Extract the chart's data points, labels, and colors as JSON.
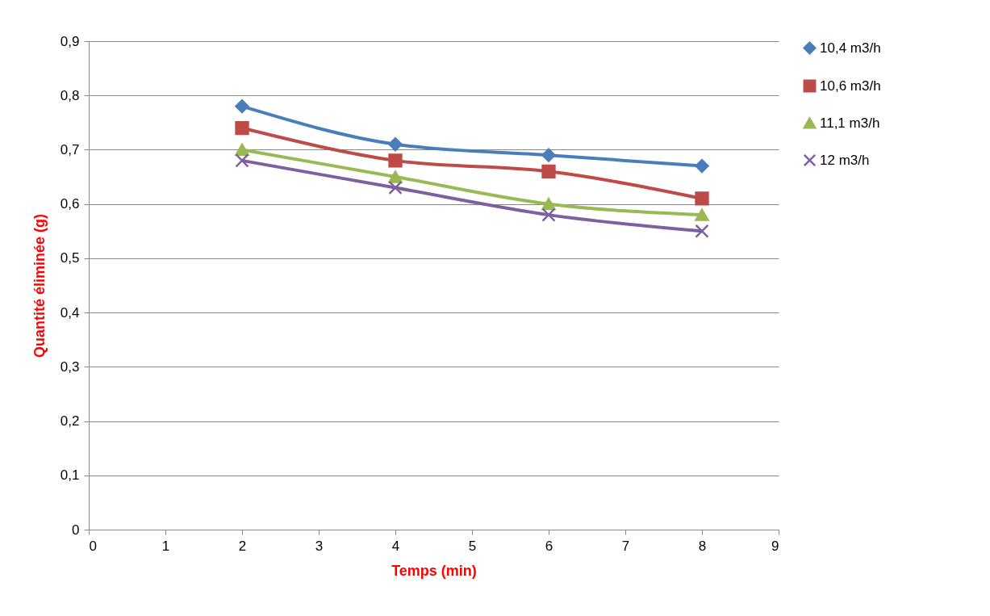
{
  "chart_data": {
    "type": "line",
    "xlabel": "Temps (min)",
    "ylabel": "Quantité éliminée (g)",
    "x": [
      2,
      4,
      6,
      8
    ],
    "series": [
      {
        "name": "10,4 m3/h",
        "color": "#4a7ebb",
        "marker": "diamond",
        "values": [
          0.78,
          0.71,
          0.69,
          0.67
        ]
      },
      {
        "name": "10,6 m3/h",
        "color": "#be4b48",
        "marker": "square",
        "values": [
          0.74,
          0.68,
          0.66,
          0.61
        ]
      },
      {
        "name": "11,1 m3/h",
        "color": "#98b954",
        "marker": "triangle",
        "values": [
          0.7,
          0.65,
          0.6,
          0.58
        ]
      },
      {
        "name": "12 m3/h",
        "color": "#7d60a0",
        "marker": "cross",
        "values": [
          0.68,
          0.63,
          0.58,
          0.55
        ]
      }
    ],
    "xlim": [
      0,
      9
    ],
    "xticks": [
      0,
      1,
      2,
      3,
      4,
      5,
      6,
      7,
      8,
      9
    ],
    "ylim": [
      0,
      0.9
    ],
    "yticks": [
      0,
      {
        "value": 0.1,
        "label": "0,1"
      },
      {
        "value": 0.2,
        "label": "0,2"
      },
      {
        "value": 0.3,
        "label": "0,3"
      },
      {
        "value": 0.4,
        "label": "0,4"
      },
      {
        "value": 0.5,
        "label": "0,5"
      },
      {
        "value": 0.6,
        "label": "0,6"
      },
      {
        "value": 0.7,
        "label": "0,7"
      },
      {
        "value": 0.8,
        "label": "0,8"
      },
      {
        "value": 0.9,
        "label": "0,9"
      }
    ],
    "grid": "y",
    "legend": "right",
    "line_style": "solid"
  }
}
